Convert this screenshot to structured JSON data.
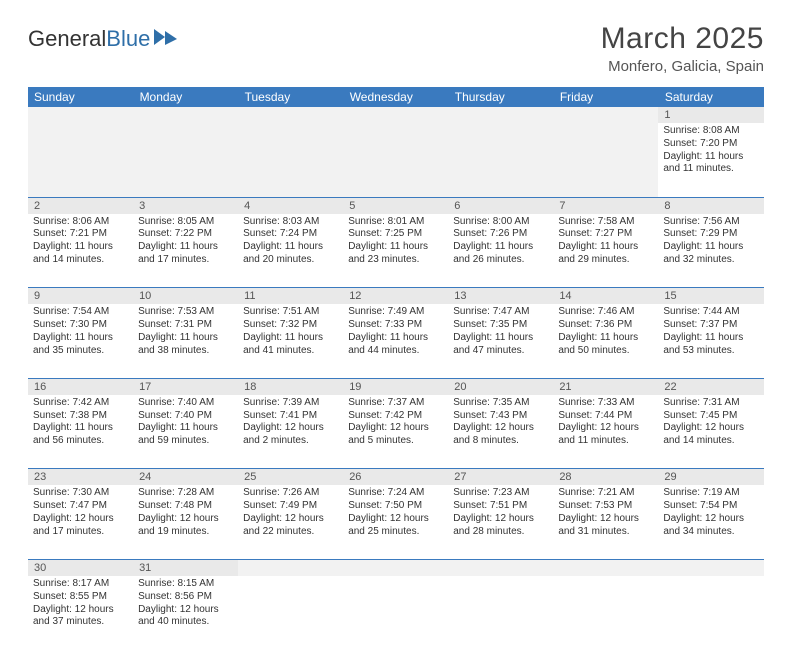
{
  "logo": {
    "text1": "General",
    "text2": "Blue",
    "flag_color": "#2f6fa8"
  },
  "title": "March 2025",
  "subtitle": "Monfero, Galicia, Spain",
  "colors": {
    "header_bg": "#3a7abf",
    "header_text": "#ffffff",
    "daynum_bg": "#e9e9e9",
    "row_border": "#3a7abf",
    "body_text": "#333333"
  },
  "weekdays": [
    "Sunday",
    "Monday",
    "Tuesday",
    "Wednesday",
    "Thursday",
    "Friday",
    "Saturday"
  ],
  "weeks": [
    [
      null,
      null,
      null,
      null,
      null,
      null,
      {
        "n": "1",
        "sr": "8:08 AM",
        "ss": "7:20 PM",
        "dl": "11 hours and 11 minutes."
      }
    ],
    [
      {
        "n": "2",
        "sr": "8:06 AM",
        "ss": "7:21 PM",
        "dl": "11 hours and 14 minutes."
      },
      {
        "n": "3",
        "sr": "8:05 AM",
        "ss": "7:22 PM",
        "dl": "11 hours and 17 minutes."
      },
      {
        "n": "4",
        "sr": "8:03 AM",
        "ss": "7:24 PM",
        "dl": "11 hours and 20 minutes."
      },
      {
        "n": "5",
        "sr": "8:01 AM",
        "ss": "7:25 PM",
        "dl": "11 hours and 23 minutes."
      },
      {
        "n": "6",
        "sr": "8:00 AM",
        "ss": "7:26 PM",
        "dl": "11 hours and 26 minutes."
      },
      {
        "n": "7",
        "sr": "7:58 AM",
        "ss": "7:27 PM",
        "dl": "11 hours and 29 minutes."
      },
      {
        "n": "8",
        "sr": "7:56 AM",
        "ss": "7:29 PM",
        "dl": "11 hours and 32 minutes."
      }
    ],
    [
      {
        "n": "9",
        "sr": "7:54 AM",
        "ss": "7:30 PM",
        "dl": "11 hours and 35 minutes."
      },
      {
        "n": "10",
        "sr": "7:53 AM",
        "ss": "7:31 PM",
        "dl": "11 hours and 38 minutes."
      },
      {
        "n": "11",
        "sr": "7:51 AM",
        "ss": "7:32 PM",
        "dl": "11 hours and 41 minutes."
      },
      {
        "n": "12",
        "sr": "7:49 AM",
        "ss": "7:33 PM",
        "dl": "11 hours and 44 minutes."
      },
      {
        "n": "13",
        "sr": "7:47 AM",
        "ss": "7:35 PM",
        "dl": "11 hours and 47 minutes."
      },
      {
        "n": "14",
        "sr": "7:46 AM",
        "ss": "7:36 PM",
        "dl": "11 hours and 50 minutes."
      },
      {
        "n": "15",
        "sr": "7:44 AM",
        "ss": "7:37 PM",
        "dl": "11 hours and 53 minutes."
      }
    ],
    [
      {
        "n": "16",
        "sr": "7:42 AM",
        "ss": "7:38 PM",
        "dl": "11 hours and 56 minutes."
      },
      {
        "n": "17",
        "sr": "7:40 AM",
        "ss": "7:40 PM",
        "dl": "11 hours and 59 minutes."
      },
      {
        "n": "18",
        "sr": "7:39 AM",
        "ss": "7:41 PM",
        "dl": "12 hours and 2 minutes."
      },
      {
        "n": "19",
        "sr": "7:37 AM",
        "ss": "7:42 PM",
        "dl": "12 hours and 5 minutes."
      },
      {
        "n": "20",
        "sr": "7:35 AM",
        "ss": "7:43 PM",
        "dl": "12 hours and 8 minutes."
      },
      {
        "n": "21",
        "sr": "7:33 AM",
        "ss": "7:44 PM",
        "dl": "12 hours and 11 minutes."
      },
      {
        "n": "22",
        "sr": "7:31 AM",
        "ss": "7:45 PM",
        "dl": "12 hours and 14 minutes."
      }
    ],
    [
      {
        "n": "23",
        "sr": "7:30 AM",
        "ss": "7:47 PM",
        "dl": "12 hours and 17 minutes."
      },
      {
        "n": "24",
        "sr": "7:28 AM",
        "ss": "7:48 PM",
        "dl": "12 hours and 19 minutes."
      },
      {
        "n": "25",
        "sr": "7:26 AM",
        "ss": "7:49 PM",
        "dl": "12 hours and 22 minutes."
      },
      {
        "n": "26",
        "sr": "7:24 AM",
        "ss": "7:50 PM",
        "dl": "12 hours and 25 minutes."
      },
      {
        "n": "27",
        "sr": "7:23 AM",
        "ss": "7:51 PM",
        "dl": "12 hours and 28 minutes."
      },
      {
        "n": "28",
        "sr": "7:21 AM",
        "ss": "7:53 PM",
        "dl": "12 hours and 31 minutes."
      },
      {
        "n": "29",
        "sr": "7:19 AM",
        "ss": "7:54 PM",
        "dl": "12 hours and 34 minutes."
      }
    ],
    [
      {
        "n": "30",
        "sr": "8:17 AM",
        "ss": "8:55 PM",
        "dl": "12 hours and 37 minutes."
      },
      {
        "n": "31",
        "sr": "8:15 AM",
        "ss": "8:56 PM",
        "dl": "12 hours and 40 minutes."
      },
      null,
      null,
      null,
      null,
      null
    ]
  ],
  "labels": {
    "sunrise": "Sunrise:",
    "sunset": "Sunset:",
    "daylight": "Daylight:"
  }
}
